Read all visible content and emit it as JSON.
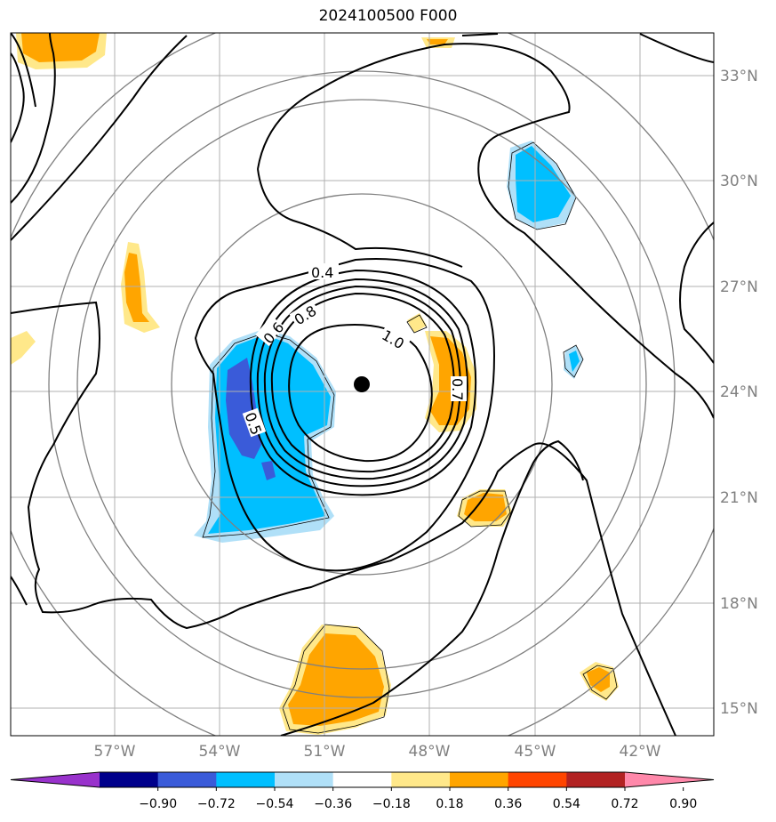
{
  "title": "2024100500 F000",
  "map": {
    "lat_ticks": [
      "33°N",
      "30°N",
      "27°N",
      "24°N",
      "21°N",
      "18°N",
      "15°N"
    ],
    "lon_ticks": [
      "57°W",
      "54°W",
      "51°W",
      "48°W",
      "45°W",
      "42°W"
    ],
    "contour_labels": [
      "0.4",
      "0.6",
      "0.8",
      "1.0",
      "0.5",
      "0.7"
    ],
    "center_marker": "storm-center",
    "colors": {
      "neg_strong": "#9932cc",
      "neg_4": "#00008b",
      "neg_3": "#3a5bd9",
      "neg_2": "#00bfff",
      "neg_1": "#b0e0f8",
      "zero": "#ffffff",
      "pos_1": "#ffe88a",
      "pos_2": "#ffa500",
      "pos_3": "#ff4500",
      "pos_4": "#b22222",
      "pos_strong": "#ff88aa"
    }
  },
  "colorbar": {
    "ticks": [
      "−0.90",
      "−0.72",
      "−0.54",
      "−0.36",
      "−0.18",
      "0.18",
      "0.36",
      "0.54",
      "0.72",
      "0.90"
    ],
    "colors": [
      "#9932cc",
      "#00008b",
      "#3a5bd9",
      "#00bfff",
      "#b0e0f8",
      "#ffffff",
      "#ffe88a",
      "#ffa500",
      "#ff4500",
      "#b22222",
      "#ff88aa"
    ]
  }
}
